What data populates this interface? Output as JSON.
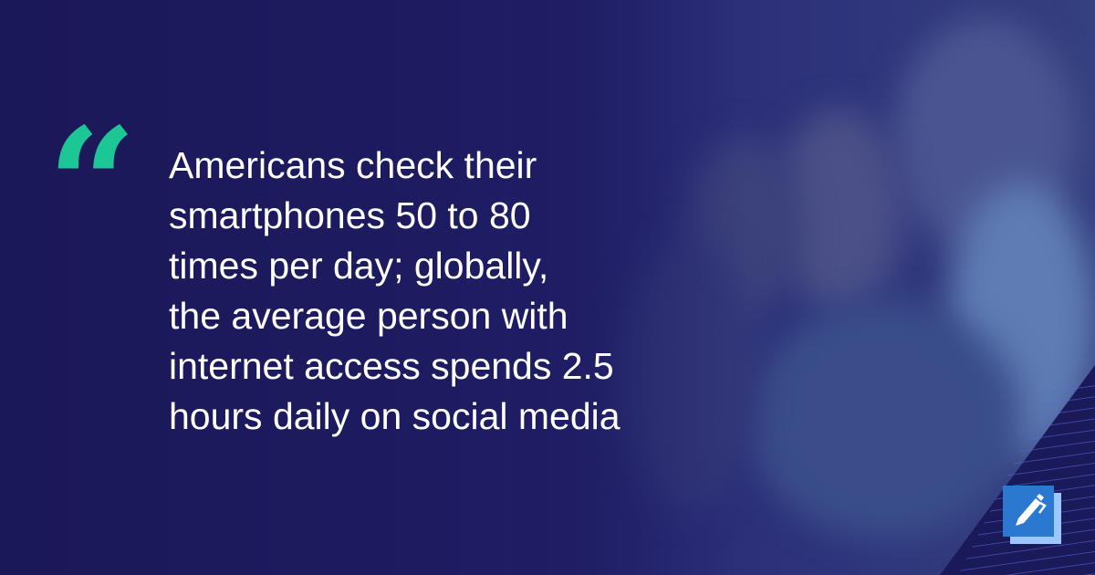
{
  "quote": {
    "mark": "“",
    "lines": [
      "Americans check their",
      "smartphones 50 to 80",
      "times per day; globally,",
      "the average person with",
      "internet access spends 2.5",
      "hours daily on social media"
    ]
  },
  "logo": {
    "icon": "pen-icon"
  },
  "colors": {
    "accent": "#1dc795",
    "background": "#1b1858",
    "logo": "#2a78d0"
  }
}
